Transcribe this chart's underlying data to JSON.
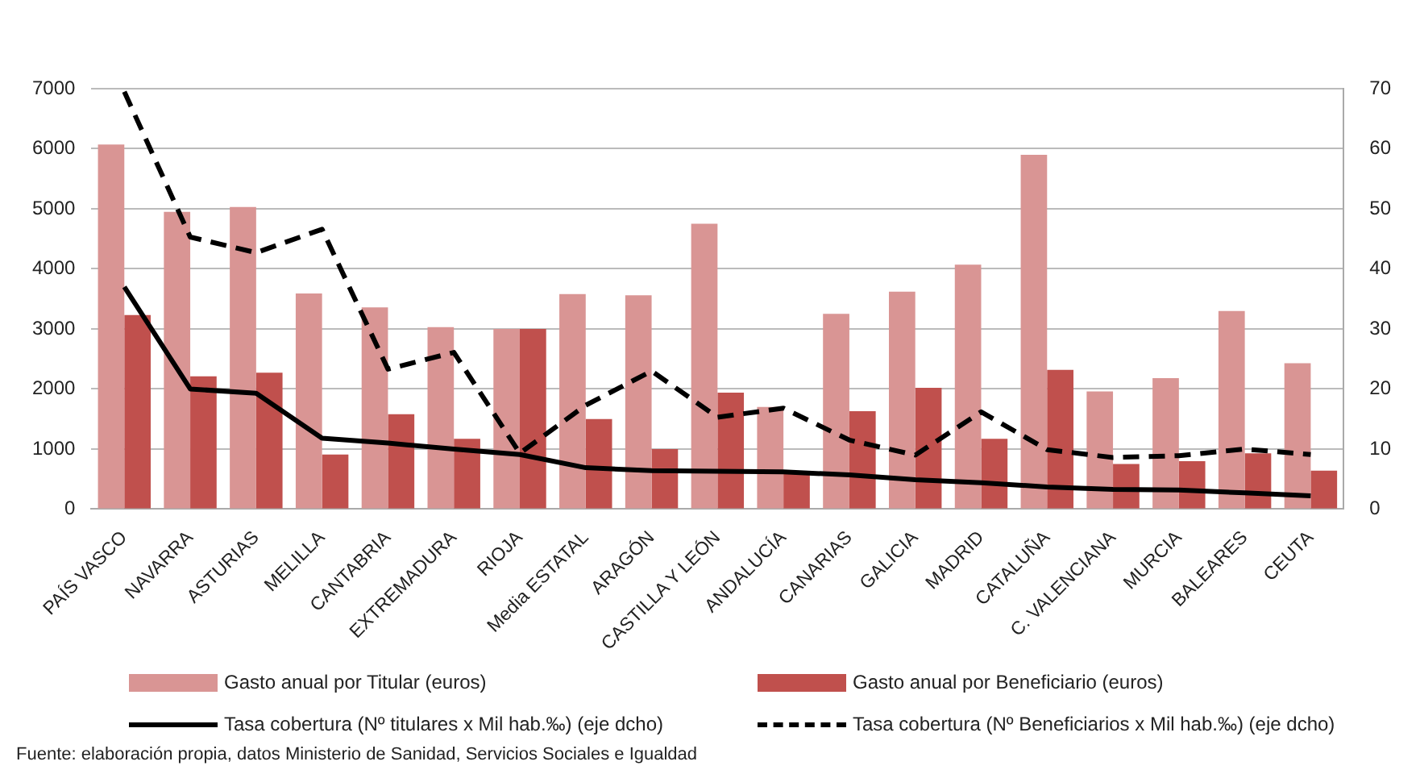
{
  "chart_data": {
    "type": "bar",
    "categories": [
      "PAÍS VASCO",
      "NAVARRA",
      "ASTURIAS",
      "MELILLA",
      "CANTABRIA",
      "EXTREMADURA",
      "RIOJA",
      "Media ESTATAL",
      "ARAGÓN",
      "CASTILLA Y LEÓN",
      "ANDALUCÍA",
      "CANARIAS",
      "GALICIA",
      "MADRID",
      "CATALUÑA",
      "C. VALENCIANA",
      "MURCIA",
      "BALEARES",
      "CEUTA"
    ],
    "series": [
      {
        "name": "Gasto anual por Titular (euros)",
        "color": "#d99594",
        "values": [
          6070,
          4950,
          5030,
          3590,
          3360,
          3030,
          3000,
          3580,
          3560,
          4750,
          1700,
          3250,
          3620,
          4070,
          5900,
          1960,
          2180,
          3300,
          2430
        ]
      },
      {
        "name": "Gasto anual por Beneficiario (euros)",
        "color": "#c0504d",
        "values": [
          3230,
          2210,
          2270,
          910,
          1580,
          1170,
          3000,
          1500,
          1000,
          1940,
          620,
          1630,
          2020,
          1170,
          2320,
          750,
          800,
          930,
          640
        ]
      },
      {
        "name": "Tasa cobertura (Nº titulares x Mil hab.‰) (eje dcho)",
        "type": "line",
        "axis": "y2",
        "line_style": "solid",
        "color": "#000000",
        "values": [
          37,
          20,
          19.3,
          11.8,
          11,
          10,
          9.1,
          6.9,
          6.4,
          6.3,
          6.2,
          5.7,
          4.9,
          4.4,
          3.7,
          3.3,
          3.2,
          2.7,
          2.2
        ]
      },
      {
        "name": "Tasa cobertura (Nº Beneficiarios x Mil hab.‰) (eje dcho)",
        "type": "line",
        "axis": "y2",
        "line_style": "dashed",
        "color": "#000000",
        "values": [
          69.5,
          45.3,
          42.7,
          46.6,
          23.3,
          26.1,
          9.3,
          17.3,
          23,
          15.3,
          16.8,
          11.5,
          9,
          16.2,
          9.9,
          8.6,
          8.9,
          10,
          9.1
        ]
      }
    ],
    "ylim": [
      0,
      7000
    ],
    "yticks": [
      0,
      1000,
      2000,
      3000,
      4000,
      5000,
      6000,
      7000
    ],
    "y2lim": [
      0,
      70
    ],
    "y2ticks": [
      0,
      10,
      20,
      30,
      40,
      50,
      60,
      70
    ],
    "grid": "y",
    "legend": "bottom",
    "marker": "none",
    "annotations": [
      "Fuente:  elaboración propia, datos Ministerio de Sanidad, Servicios Sociales e Igualdad"
    ]
  }
}
